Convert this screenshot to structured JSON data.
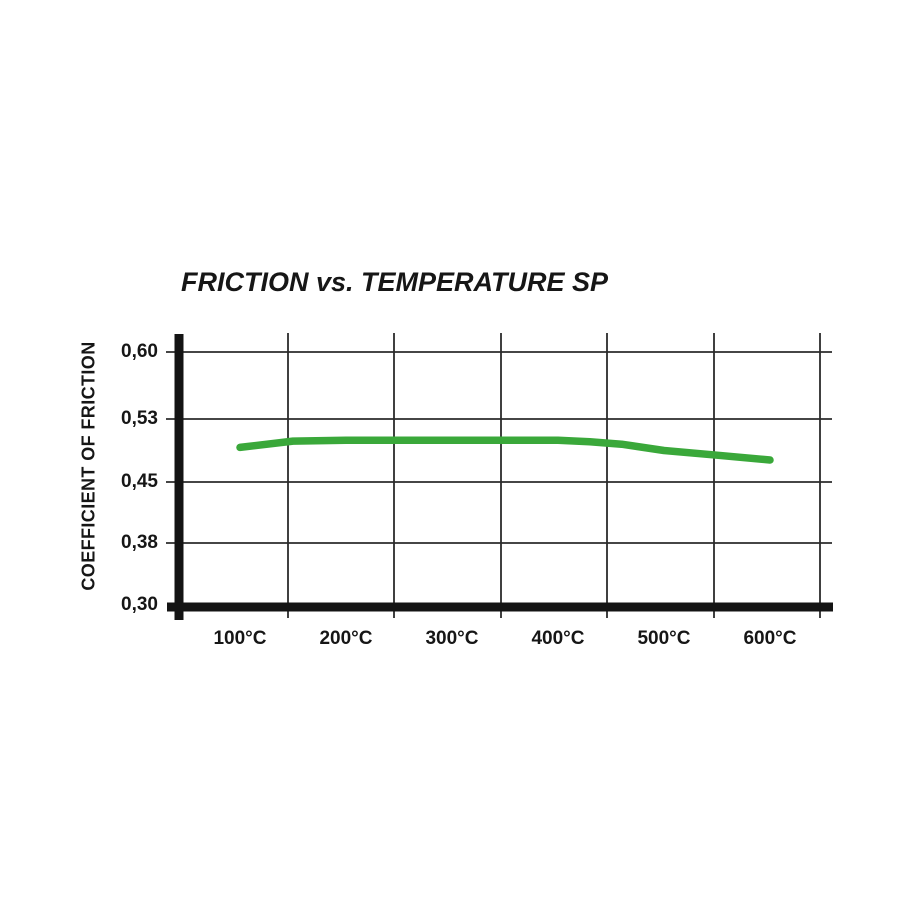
{
  "title": "FRICTION vs. TEMPERATURE SP",
  "y_axis": {
    "label": "COEFFICIENT OF FRICTION",
    "ticks": [
      "0,60",
      "0,53",
      "0,45",
      "0,38",
      "0,30"
    ]
  },
  "x_axis": {
    "ticks": [
      "100°C",
      "200°C",
      "300°C",
      "400°C",
      "500°C",
      "600°C"
    ]
  },
  "colors": {
    "line_green": "#3aa83a",
    "axis_black": "#141414",
    "grid_black": "#2b2b2b",
    "background": "#ffffff",
    "text": "#161616"
  },
  "chart_data": {
    "type": "line",
    "title": "FRICTION vs. TEMPERATURE SP",
    "xlabel": "",
    "ylabel": "COEFFICIENT OF FRICTION",
    "x_tick_labels": [
      "100°C",
      "200°C",
      "300°C",
      "400°C",
      "500°C",
      "600°C"
    ],
    "y_tick_labels": [
      "0,60",
      "0,53",
      "0,45",
      "0,38",
      "0,30"
    ],
    "y_tick_values": [
      0.6,
      0.53,
      0.45,
      0.38,
      0.3
    ],
    "x_unit": "°C",
    "grid": true,
    "legend": false,
    "series": [
      {
        "name": "SP",
        "x": [
          100,
          150,
          200,
          250,
          300,
          350,
          400,
          430,
          460,
          500,
          550,
          600
        ],
        "values": [
          0.494,
          0.502,
          0.503,
          0.503,
          0.503,
          0.503,
          0.503,
          0.501,
          0.498,
          0.49,
          0.484,
          0.478
        ]
      }
    ]
  }
}
